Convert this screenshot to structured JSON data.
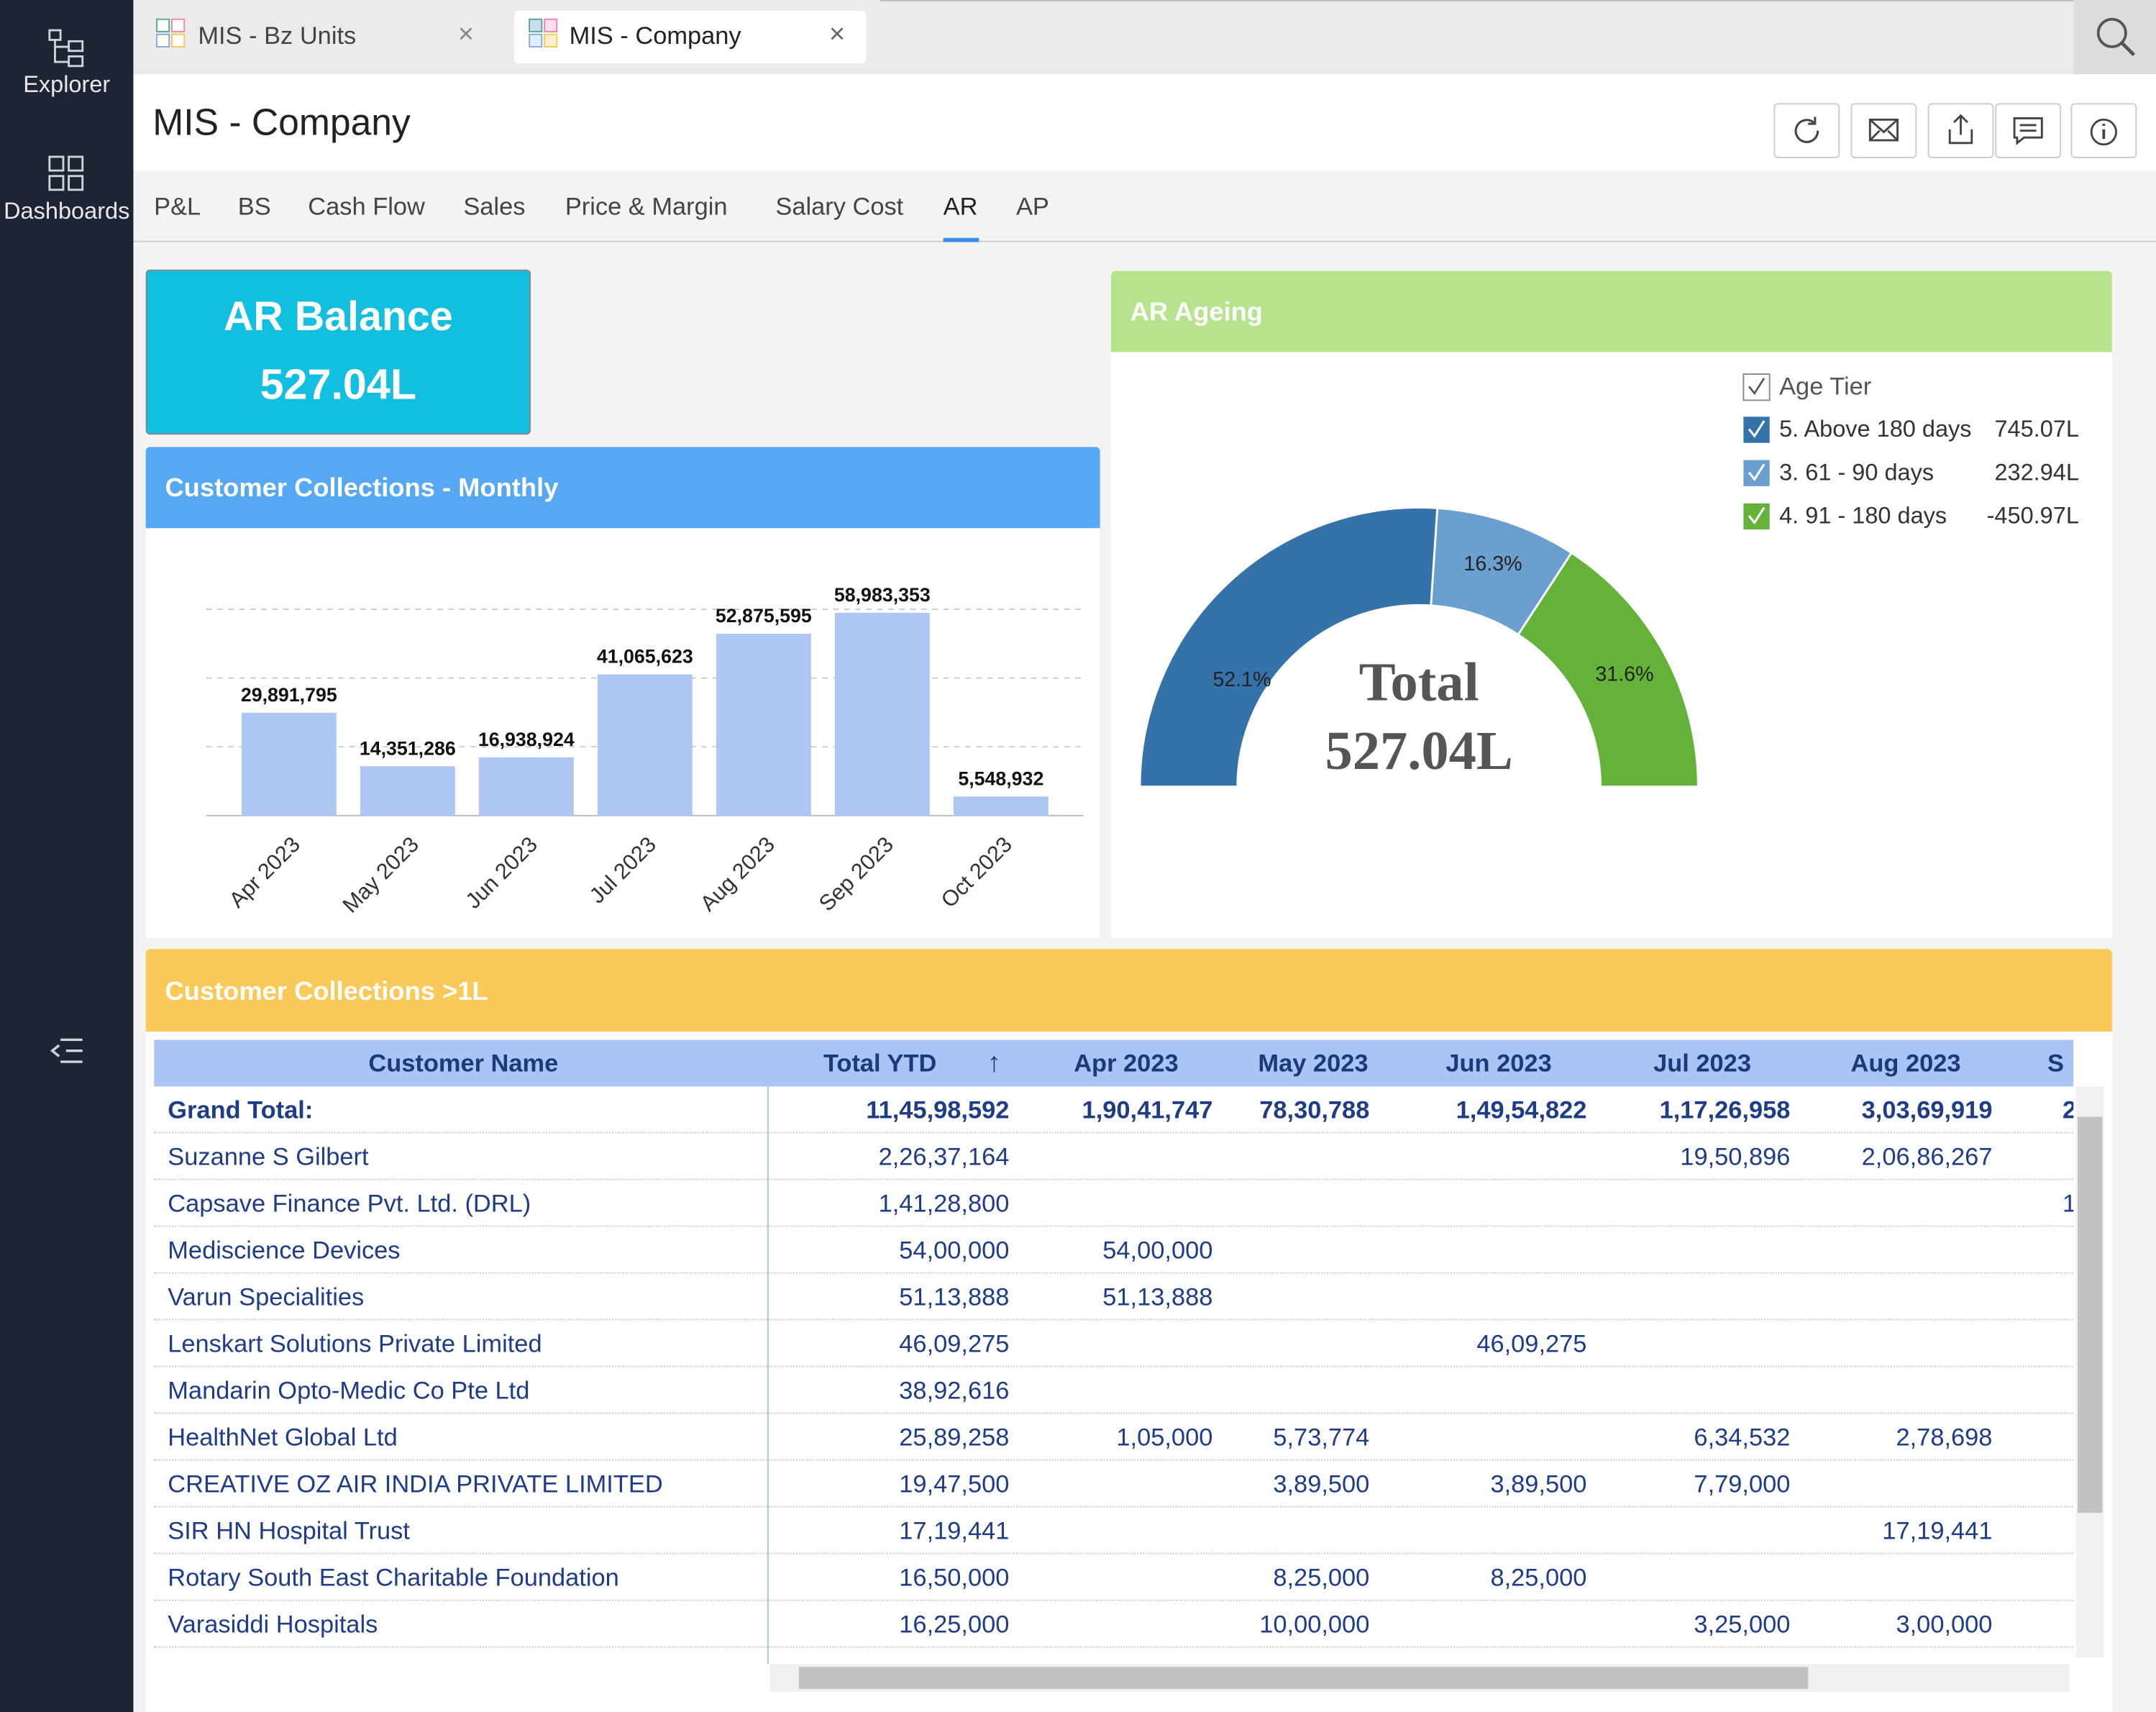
{
  "sidebar": [
    "Explorer",
    "Dashboards"
  ],
  "tabs": [
    "MIS - Bz Units",
    "MIS - Company"
  ],
  "title": "MIS - Company",
  "nav": [
    "P&L",
    "BS",
    "Cash Flow",
    "Sales",
    "Price & Margin",
    "Salary Cost",
    "AR",
    "AP"
  ],
  "kpi": {
    "title": "AR Balance",
    "value": "527.04L"
  },
  "chart_data": [
    {
      "type": "bar",
      "title": "Customer Collections - Monthly",
      "categories": [
        "Apr 2023",
        "May 2023",
        "Jun 2023",
        "Jul 2023",
        "Aug 2023",
        "Sep 2023",
        "Oct 2023"
      ],
      "values": [
        29891795,
        14351286,
        16938924,
        41065623,
        52875595,
        58983353,
        5548932
      ],
      "value_labels": [
        "29,891,795",
        "14,351,286",
        "16,938,924",
        "41,065,623",
        "52,875,595",
        "58,983,353",
        "5,548,932"
      ],
      "color": "#aec6f4",
      "ylim": [
        0,
        60000000
      ],
      "yticks": [
        0,
        20000000,
        40000000,
        60000000
      ],
      "grid": true
    },
    {
      "type": "pie",
      "title": "AR Ageing",
      "legend_title": "Age Tier",
      "center_text": [
        "Total",
        "527.04L"
      ],
      "series": [
        {
          "name": "5. Above 180 days",
          "color": "#3572a9",
          "value": 52.1,
          "value_label": "52.1%",
          "legend_value": "745.07L"
        },
        {
          "name": "3. 61 - 90 days",
          "color": "#6a9fd0",
          "value": 16.3,
          "value_label": "16.3%",
          "legend_value": "232.94L"
        },
        {
          "name": "4. 91 - 180 days",
          "color": "#64b23a",
          "value": 31.6,
          "value_label": "31.6%",
          "legend_value": "-450.97L"
        }
      ]
    }
  ],
  "table": {
    "title": "Customer Collections >1L",
    "columns": [
      "Customer Name",
      "Total YTD",
      "Apr 2023",
      "May 2023",
      "Jun 2023",
      "Jul 2023",
      "Aug 2023",
      "S"
    ],
    "rows": [
      [
        "Grand Total:",
        "11,45,98,592",
        "1,90,41,747",
        "78,30,788",
        "1,49,54,822",
        "1,17,26,958",
        "3,03,69,919",
        "2"
      ],
      [
        "Suzanne S Gilbert",
        "2,26,37,164",
        null,
        null,
        null,
        "19,50,896",
        "2,06,86,267",
        null
      ],
      [
        "Capsave Finance Pvt. Ltd. (DRL)",
        "1,41,28,800",
        null,
        null,
        null,
        null,
        null,
        "1"
      ],
      [
        "Mediscience Devices",
        "54,00,000",
        "54,00,000",
        null,
        null,
        null,
        null,
        null
      ],
      [
        "Varun Specialities",
        "51,13,888",
        "51,13,888",
        null,
        null,
        null,
        null,
        null
      ],
      [
        "Lenskart Solutions Private Limited",
        "46,09,275",
        null,
        null,
        "46,09,275",
        null,
        null,
        null
      ],
      [
        "Mandarin Opto-Medic Co Pte Ltd",
        "38,92,616",
        null,
        null,
        null,
        null,
        null,
        null
      ],
      [
        "HealthNet Global Ltd",
        "25,89,258",
        "1,05,000",
        "5,73,774",
        null,
        "6,34,532",
        "2,78,698",
        null
      ],
      [
        "CREATIVE OZ AIR INDIA PRIVATE LIMITED",
        "19,47,500",
        null,
        "3,89,500",
        "3,89,500",
        "7,79,000",
        null,
        null
      ],
      [
        "SIR HN Hospital Trust",
        "17,19,441",
        null,
        null,
        null,
        null,
        "17,19,441",
        null
      ],
      [
        "Rotary South East Charitable Foundation",
        "16,50,000",
        null,
        "8,25,000",
        "8,25,000",
        null,
        null,
        null
      ],
      [
        "Varasiddi Hospitals",
        "16,25,000",
        null,
        "10,00,000",
        null,
        "3,25,000",
        "3,00,000",
        null
      ]
    ]
  }
}
